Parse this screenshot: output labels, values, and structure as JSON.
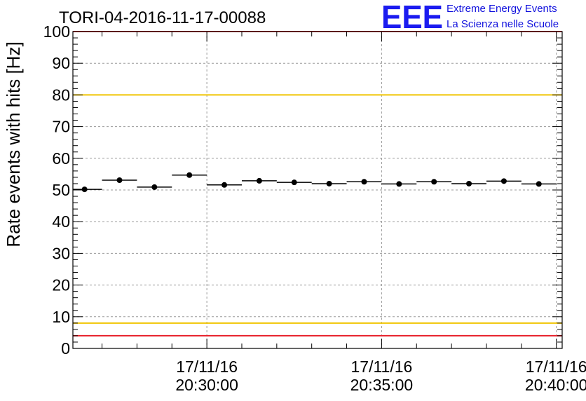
{
  "chart_data": {
    "type": "scatter",
    "title": "TORI-04-2016-11-17-00088",
    "xlabel": "",
    "ylabel": "Rate events with hits [Hz]",
    "ylim": [
      0,
      100
    ],
    "xlim": [
      "17/11/16 20:26:10",
      "17/11/16 20:40:10"
    ],
    "y_ticks": [
      "0",
      "10",
      "20",
      "30",
      "40",
      "50",
      "60",
      "70",
      "80",
      "90",
      "100"
    ],
    "x_ticks": [
      {
        "date": "17/11/16",
        "time": "20:30:00"
      },
      {
        "date": "17/11/16",
        "time": "20:35:00"
      },
      {
        "date": "17/11/16",
        "time": "20:40:00"
      }
    ],
    "grid": true,
    "reference_lines": [
      {
        "y": 100,
        "color": "#e8202a"
      },
      {
        "y": 80,
        "color": "#f0c400"
      },
      {
        "y": 8,
        "color": "#f0c400"
      },
      {
        "y": 4,
        "color": "#e8202a"
      }
    ],
    "series": [
      {
        "marker": "circle",
        "color": "#000000",
        "x": [
          "20:26:30",
          "20:27:30",
          "20:28:30",
          "20:29:30",
          "20:30:30",
          "20:31:30",
          "20:32:30",
          "20:33:30",
          "20:34:30",
          "20:35:30",
          "20:36:30",
          "20:37:30",
          "20:38:30",
          "20:39:30"
        ],
        "bin_width_seconds": 60,
        "values": [
          50.2,
          53.1,
          50.9,
          54.7,
          51.6,
          52.9,
          52.4,
          52.0,
          52.6,
          51.9,
          52.6,
          52.0,
          52.8,
          51.9
        ]
      }
    ]
  },
  "logo": {
    "big": "EEE",
    "line1": "Extreme Energy Events",
    "line2": "La Scienza nelle Scuole",
    "color": "#1b1bf0"
  }
}
